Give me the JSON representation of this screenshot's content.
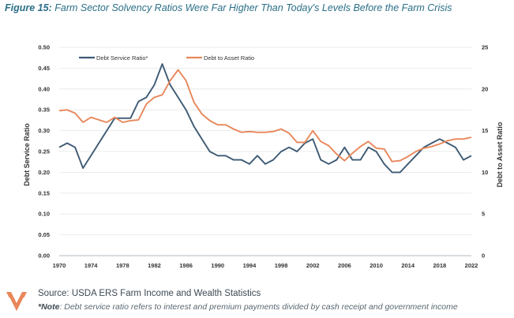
{
  "figure": {
    "label": "Figure 15:",
    "title": "Farm Sector Solvency Ratios Were Far Higher Than Today's Levels Before the Farm Crisis"
  },
  "footer": {
    "source": "Source: USDA ERS Farm Income and Wealth Statistics",
    "note_label": "*Note",
    "note_text": ": Debt service ratio refers to interest and premium payments divided by cash receipt and government income"
  },
  "colors": {
    "debt_service": "#3d5a73",
    "debt_to_asset": "#e8875a",
    "title": "#2b6f87",
    "logo": "#e8875a"
  },
  "chart_data": {
    "type": "line",
    "title": "",
    "xlabel": "",
    "ylabel_left": "Debt Service Ratio",
    "ylabel_right": "Debt to Asset Ratio",
    "xlim": [
      1970,
      2022
    ],
    "ylim_left": [
      0,
      0.5
    ],
    "ylim_right": [
      0,
      25
    ],
    "x_ticks": [
      1970,
      1974,
      1978,
      1982,
      1986,
      1990,
      1994,
      1998,
      2002,
      2006,
      2010,
      2014,
      2018,
      2022
    ],
    "y_ticks_left": [
      "0.00",
      "0.05",
      "0.10",
      "0.15",
      "0.20",
      "0.25",
      "0.30",
      "0.35",
      "0.40",
      "0.45",
      "0.50"
    ],
    "y_ticks_right": [
      "0",
      "5",
      "10",
      "15",
      "20",
      "25"
    ],
    "grid": true,
    "legend_position": "top-left",
    "x": [
      1970,
      1971,
      1972,
      1973,
      1974,
      1975,
      1976,
      1977,
      1978,
      1979,
      1980,
      1981,
      1982,
      1983,
      1984,
      1985,
      1986,
      1987,
      1988,
      1989,
      1990,
      1991,
      1992,
      1993,
      1994,
      1995,
      1996,
      1997,
      1998,
      1999,
      2000,
      2001,
      2002,
      2003,
      2004,
      2005,
      2006,
      2007,
      2008,
      2009,
      2010,
      2011,
      2012,
      2013,
      2014,
      2015,
      2016,
      2017,
      2018,
      2019,
      2020,
      2021,
      2022
    ],
    "series": [
      {
        "name": "Debt Service Ratio*",
        "axis": "left",
        "values": [
          0.26,
          0.27,
          0.26,
          0.21,
          0.24,
          0.27,
          0.3,
          0.33,
          0.33,
          0.33,
          0.37,
          0.38,
          0.41,
          0.46,
          0.41,
          0.38,
          0.35,
          0.31,
          0.28,
          0.25,
          0.24,
          0.24,
          0.23,
          0.23,
          0.22,
          0.24,
          0.22,
          0.23,
          0.25,
          0.26,
          0.25,
          0.27,
          0.28,
          0.23,
          0.22,
          0.23,
          0.26,
          0.23,
          0.23,
          0.26,
          0.25,
          0.22,
          0.2,
          0.2,
          0.22,
          0.24,
          0.26,
          0.27,
          0.28,
          0.27,
          0.26,
          0.23,
          0.24
        ]
      },
      {
        "name": "Debt to Asset Ratio",
        "axis": "right",
        "values": [
          17.4,
          17.5,
          17.1,
          16.0,
          16.6,
          16.3,
          16.0,
          16.6,
          16.0,
          16.2,
          16.3,
          18.2,
          19.0,
          19.3,
          21.0,
          22.3,
          21.0,
          18.4,
          17.0,
          16.2,
          15.7,
          15.7,
          15.2,
          14.8,
          14.9,
          14.8,
          14.8,
          14.9,
          15.2,
          14.7,
          13.6,
          13.6,
          15.0,
          13.7,
          13.2,
          12.2,
          11.4,
          12.3,
          13.1,
          13.7,
          12.9,
          12.8,
          11.3,
          11.4,
          11.9,
          12.5,
          12.9,
          13.1,
          13.4,
          13.8,
          14.0,
          14.0,
          14.2
        ]
      }
    ]
  }
}
